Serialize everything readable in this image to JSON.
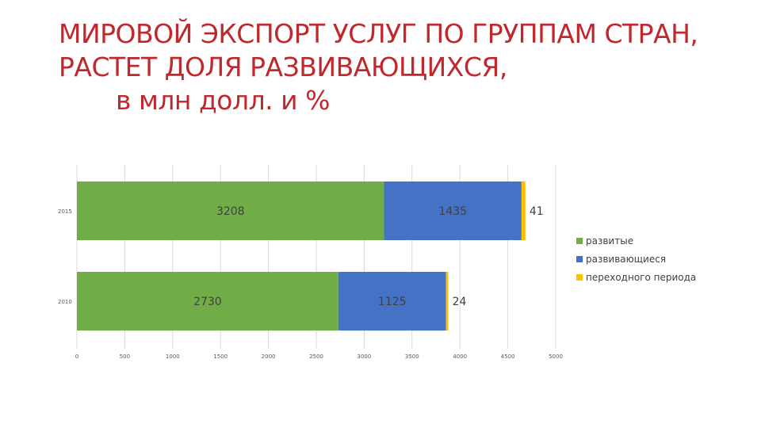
{
  "title": {
    "line1": "МИРОВОЙ ЭКСПОРТ УСЛУГ ПО ГРУППАМ СТРАН,",
    "line2": "РАСТЕТ ДОЛЯ РАЗВИВАЮЩИХСЯ,",
    "line3": "в млн долл. и %"
  },
  "chart_data": {
    "type": "bar",
    "orientation": "horizontal",
    "stacked": true,
    "categories": [
      "2015",
      "2010"
    ],
    "series": [
      {
        "name": "развитые",
        "values": [
          3208,
          2730
        ],
        "color": "#70ad47"
      },
      {
        "name": "развивающиеся",
        "values": [
          1435,
          1125
        ],
        "color": "#4472c4"
      },
      {
        "name": "переходного периода",
        "values": [
          41,
          24
        ],
        "color": "#ffc000"
      }
    ],
    "xlim": [
      0,
      5000
    ],
    "xticks": [
      "0",
      "500",
      "1000",
      "1500",
      "2000",
      "2500",
      "3000",
      "3500",
      "4000",
      "4500",
      "5000"
    ],
    "grid": true,
    "legend": "right",
    "data_labels": true
  }
}
